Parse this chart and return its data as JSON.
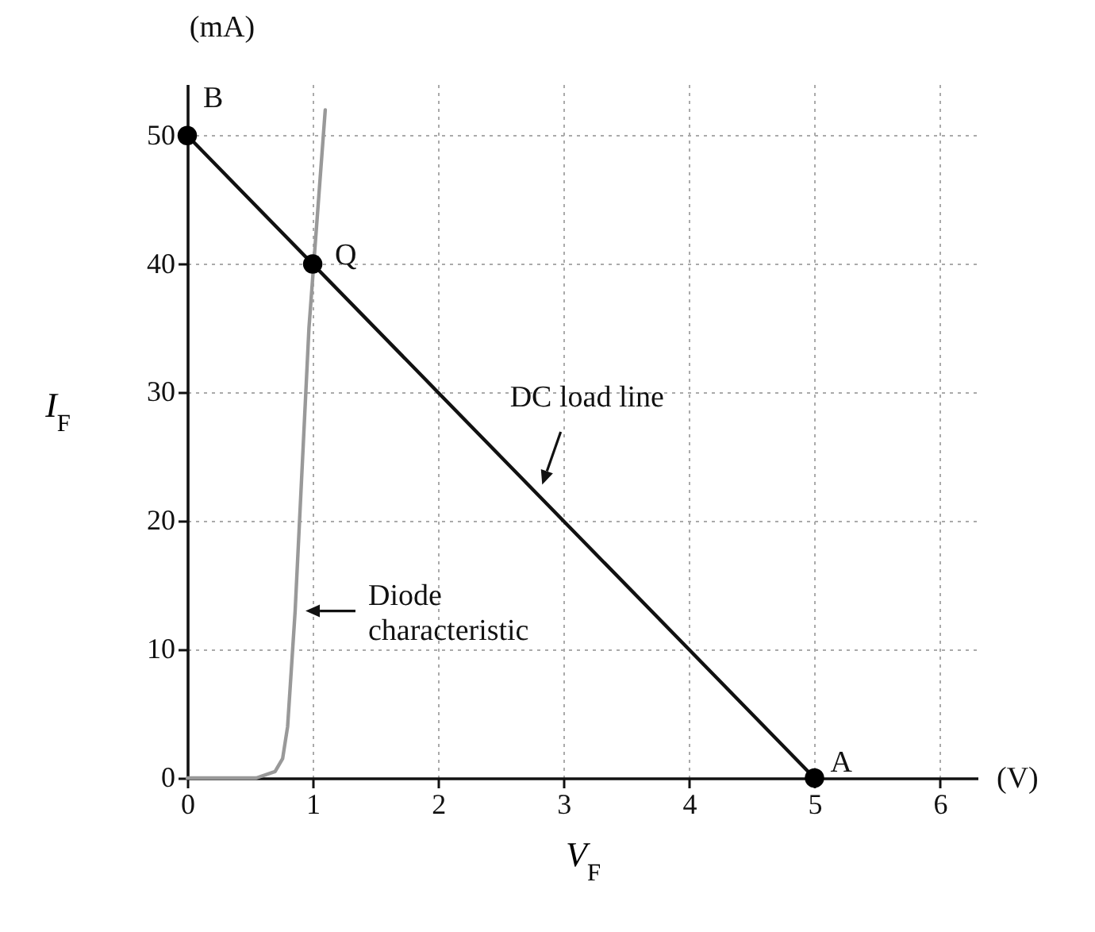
{
  "chart_data": {
    "type": "line",
    "xlabel": "V$_{F}$",
    "ylabel": "I$_{F}$",
    "xlim": [
      0,
      6.3
    ],
    "ylim": [
      0,
      54
    ],
    "xticks": [
      {
        "value": 0,
        "label": "0"
      },
      {
        "value": 1,
        "label": "1"
      },
      {
        "value": 2,
        "label": "2"
      },
      {
        "value": 3,
        "label": "3"
      },
      {
        "value": 4,
        "label": "4"
      },
      {
        "value": 5,
        "label": "5"
      },
      {
        "value": 6,
        "label": "6"
      }
    ],
    "yticks": [
      0,
      10,
      20,
      30,
      40,
      50
    ],
    "grid": true,
    "series": [
      {
        "color": "#111111",
        "x": [
          0,
          5
        ],
        "values": [
          50,
          0
        ]
      },
      {
        "color": "#999999",
        "x": [
          0,
          0.55,
          0.7,
          0.76,
          0.8,
          0.86,
          0.97,
          1.1
        ],
        "values": [
          0,
          0,
          0.5,
          1.5,
          4,
          13,
          35,
          52
        ]
      },
      {
        "type": "scatter",
        "color": "#000000",
        "marker": "circle",
        "x": [
          0,
          1,
          5
        ],
        "values": [
          50,
          40,
          0
        ]
      }
    ],
    "annotations": [
      "(mA)",
      "(V)",
      {
        "text": "B",
        "x": 0,
        "y": 50
      },
      {
        "text": "Q",
        "x": 1,
        "y": 40
      },
      {
        "text": "A",
        "x": 5,
        "y": 0
      },
      {
        "text": "DC load line",
        "x": 2.8,
        "y": 22
      },
      {
        "text": "Diode characteristic",
        "x": 0.86,
        "y": 13
      }
    ]
  }
}
